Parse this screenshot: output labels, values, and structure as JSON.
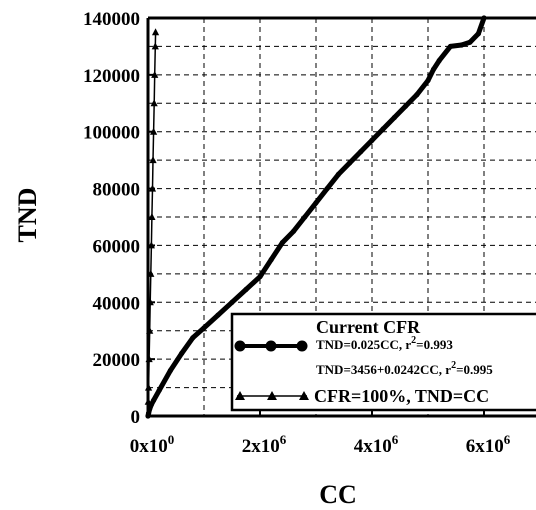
{
  "chart_data": {
    "type": "line",
    "xlabel": "CC",
    "ylabel": "TND",
    "xlim": [
      0,
      6200000
    ],
    "ylim": [
      0,
      140000
    ],
    "y_ticks": [
      0,
      20000,
      40000,
      60000,
      80000,
      100000,
      120000,
      140000
    ],
    "y_tick_labels": [
      "0",
      "20000",
      "40000",
      "60000",
      "80000",
      "100000",
      "120000",
      "140000"
    ],
    "x_ticks": [
      0,
      2000000,
      4000000,
      6000000
    ],
    "x_tick_labels": [
      {
        "base": "0x10",
        "exp": "0"
      },
      {
        "base": "2x10",
        "exp": "6"
      },
      {
        "base": "4x10",
        "exp": "6"
      },
      {
        "base": "6x10",
        "exp": "6"
      }
    ],
    "grid": true,
    "legend": {
      "placement": "bottom-right",
      "header": "Current CFR",
      "entries": [
        {
          "marker": "circle",
          "label_parts": [
            {
              "t": "TND=0.025CC, r"
            },
            {
              "t": "2",
              "sup": true
            },
            {
              "t": "=0.993"
            }
          ]
        },
        {
          "marker": "none",
          "label_parts": [
            {
              "t": "TND=3456+0.0242CC, r"
            },
            {
              "t": "2",
              "sup": true
            },
            {
              "t": "=0.995"
            }
          ]
        },
        {
          "marker": "triangle",
          "label_parts": [
            {
              "t": "CFR=100%, TND=CC"
            }
          ]
        }
      ]
    },
    "series": [
      {
        "marker": "circle",
        "x": [
          0,
          10000,
          30000,
          60000,
          100000,
          200000,
          400000,
          600000,
          800000,
          1000000,
          1250000,
          1500000,
          1750000,
          2000000,
          2200000,
          2400000,
          2600000,
          2800000,
          3000000,
          3200000,
          3400000,
          3600000,
          3800000,
          4000000,
          4200000,
          4400000,
          4600000,
          4800000,
          5000000,
          5100000,
          5200000,
          5400000,
          5600000,
          5750000,
          5900000,
          6000000
        ],
        "y": [
          0,
          1000,
          2500,
          4000,
          5500,
          9000,
          16000,
          22000,
          27500,
          31000,
          35500,
          40000,
          44500,
          49000,
          55000,
          61000,
          65000,
          70000,
          75000,
          80000,
          85000,
          89000,
          93000,
          97000,
          101000,
          105000,
          109000,
          113000,
          118000,
          122000,
          125000,
          130000,
          130500,
          131500,
          134500,
          140000
        ]
      },
      {
        "marker": "triangle",
        "x": [
          0,
          5000,
          10000,
          20000,
          30000,
          40000,
          50000,
          60000,
          70000,
          80000,
          90000,
          100000,
          110000,
          120000,
          130000,
          135000
        ],
        "y": [
          0,
          5000,
          10000,
          20000,
          30000,
          40000,
          50000,
          60000,
          70000,
          80000,
          90000,
          100000,
          110000,
          120000,
          130000,
          135000
        ]
      }
    ]
  }
}
